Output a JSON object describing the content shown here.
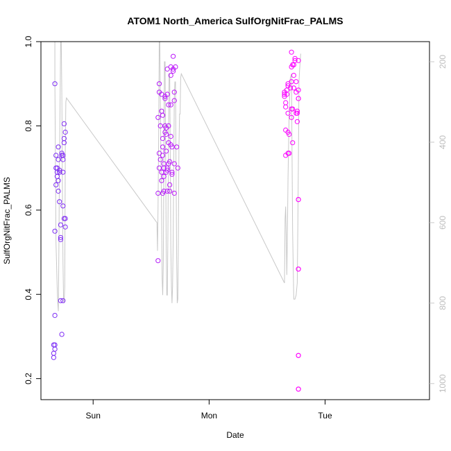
{
  "chart_data": {
    "type": "scatter",
    "title": "ATOM1 North_America SulfOrgNitFrac_PALMS",
    "xlabel": "Date",
    "ylabel": "SulfOrgNitFrac_PALMS",
    "x_unit": "days",
    "x_ticks": [
      {
        "label": "Sun",
        "value": 0
      },
      {
        "label": "Mon",
        "value": 1
      },
      {
        "label": "Tue",
        "value": 2
      }
    ],
    "xlim": [
      -0.45,
      2.9
    ],
    "ylim": [
      0.15,
      1.0
    ],
    "y_ticks": [
      0.2,
      0.4,
      0.6,
      0.8,
      1.0
    ],
    "secondary_axis": {
      "label": "",
      "ylim": [
        1040,
        150
      ],
      "ticks": [
        200,
        400,
        600,
        800,
        1000
      ],
      "color": "#c8c8c8"
    },
    "series": [
      {
        "label": "",
        "kind": "points",
        "color_start": "#7b2cf5",
        "color_end": "#ff00ff",
        "points": [
          [
            -0.33,
            0.9
          ],
          [
            -0.33,
            0.55
          ],
          [
            -0.33,
            0.35
          ],
          [
            -0.34,
            0.28
          ],
          [
            -0.34,
            0.26
          ],
          [
            -0.34,
            0.25
          ],
          [
            -0.33,
            0.28
          ],
          [
            -0.33,
            0.27
          ],
          [
            -0.32,
            0.73
          ],
          [
            -0.32,
            0.7
          ],
          [
            -0.31,
            0.69
          ],
          [
            -0.32,
            0.66
          ],
          [
            -0.31,
            0.68
          ],
          [
            -0.31,
            0.7
          ],
          [
            -0.3,
            0.75
          ],
          [
            -0.3,
            0.72
          ],
          [
            -0.3,
            0.67
          ],
          [
            -0.3,
            0.645
          ],
          [
            -0.29,
            0.62
          ],
          [
            -0.29,
            0.695
          ],
          [
            -0.29,
            0.69
          ],
          [
            -0.28,
            0.565
          ],
          [
            -0.28,
            0.535
          ],
          [
            -0.28,
            0.53
          ],
          [
            -0.28,
            0.385
          ],
          [
            -0.27,
            0.305
          ],
          [
            -0.27,
            0.735
          ],
          [
            -0.27,
            0.73
          ],
          [
            -0.26,
            0.73
          ],
          [
            -0.26,
            0.72
          ],
          [
            -0.26,
            0.69
          ],
          [
            -0.26,
            0.61
          ],
          [
            -0.25,
            0.58
          ],
          [
            -0.26,
            0.385
          ],
          [
            -0.25,
            0.805
          ],
          [
            -0.24,
            0.785
          ],
          [
            -0.25,
            0.77
          ],
          [
            -0.25,
            0.76
          ],
          [
            -0.24,
            0.58
          ],
          [
            -0.24,
            0.56
          ],
          [
            0.56,
            0.48
          ],
          [
            0.56,
            0.64
          ],
          [
            0.56,
            0.82
          ],
          [
            0.57,
            0.9
          ],
          [
            0.57,
            0.88
          ],
          [
            0.57,
            0.7
          ],
          [
            0.57,
            0.735
          ],
          [
            0.58,
            0.8
          ],
          [
            0.58,
            0.72
          ],
          [
            0.59,
            0.67
          ],
          [
            0.59,
            0.69
          ],
          [
            0.59,
            0.835
          ],
          [
            0.59,
            0.875
          ],
          [
            0.6,
            0.825
          ],
          [
            0.6,
            0.77
          ],
          [
            0.6,
            0.75
          ],
          [
            0.6,
            0.73
          ],
          [
            0.6,
            0.64
          ],
          [
            0.61,
            0.645
          ],
          [
            0.61,
            0.68
          ],
          [
            0.61,
            0.7
          ],
          [
            0.61,
            0.71
          ],
          [
            0.62,
            0.865
          ],
          [
            0.62,
            0.87
          ],
          [
            0.62,
            0.785
          ],
          [
            0.62,
            0.8
          ],
          [
            0.63,
            0.795
          ],
          [
            0.63,
            0.78
          ],
          [
            0.63,
            0.74
          ],
          [
            0.63,
            0.69
          ],
          [
            0.64,
            0.695
          ],
          [
            0.64,
            0.7
          ],
          [
            0.64,
            0.645
          ],
          [
            0.64,
            0.935
          ],
          [
            0.64,
            0.875
          ],
          [
            0.65,
            0.85
          ],
          [
            0.65,
            0.8
          ],
          [
            0.65,
            0.76
          ],
          [
            0.65,
            0.71
          ],
          [
            0.66,
            0.715
          ],
          [
            0.66,
            0.66
          ],
          [
            0.66,
            0.645
          ],
          [
            0.67,
            0.94
          ],
          [
            0.67,
            0.92
          ],
          [
            0.67,
            0.85
          ],
          [
            0.67,
            0.775
          ],
          [
            0.67,
            0.755
          ],
          [
            0.68,
            0.75
          ],
          [
            0.68,
            0.685
          ],
          [
            0.68,
            0.69
          ],
          [
            0.69,
            0.93
          ],
          [
            0.69,
            0.935
          ],
          [
            0.69,
            0.965
          ],
          [
            0.7,
            0.88
          ],
          [
            0.7,
            0.86
          ],
          [
            0.7,
            0.71
          ],
          [
            0.7,
            0.64
          ],
          [
            0.71,
            0.94
          ],
          [
            0.72,
            0.75
          ],
          [
            0.73,
            0.7
          ],
          [
            1.65,
            0.88
          ],
          [
            1.65,
            0.875
          ],
          [
            1.65,
            0.87
          ],
          [
            1.66,
            0.845
          ],
          [
            1.66,
            0.855
          ],
          [
            1.66,
            0.79
          ],
          [
            1.66,
            0.73
          ],
          [
            1.67,
            0.885
          ],
          [
            1.67,
            0.875
          ],
          [
            1.68,
            0.9
          ],
          [
            1.68,
            0.895
          ],
          [
            1.68,
            0.83
          ],
          [
            1.68,
            0.785
          ],
          [
            1.68,
            0.735
          ],
          [
            1.69,
            0.735
          ],
          [
            1.69,
            0.78
          ],
          [
            1.7,
            0.89
          ],
          [
            1.71,
            0.94
          ],
          [
            1.71,
            0.975
          ],
          [
            1.71,
            0.905
          ],
          [
            1.71,
            0.84
          ],
          [
            1.71,
            0.82
          ],
          [
            1.72,
            0.84
          ],
          [
            1.72,
            0.76
          ],
          [
            1.72,
            0.945
          ],
          [
            1.73,
            0.945
          ],
          [
            1.73,
            0.92
          ],
          [
            1.73,
            0.89
          ],
          [
            1.74,
            0.96
          ],
          [
            1.74,
            0.955
          ],
          [
            1.75,
            0.905
          ],
          [
            1.75,
            0.88
          ],
          [
            1.75,
            0.83
          ],
          [
            1.76,
            0.83
          ],
          [
            1.76,
            0.835
          ],
          [
            1.76,
            0.81
          ],
          [
            1.77,
            0.955
          ],
          [
            1.77,
            0.885
          ],
          [
            1.77,
            0.865
          ],
          [
            1.77,
            0.625
          ],
          [
            1.77,
            0.625
          ],
          [
            1.77,
            0.46
          ],
          [
            1.77,
            0.46
          ],
          [
            1.77,
            0.255
          ],
          [
            1.77,
            0.255
          ],
          [
            1.77,
            0.175
          ],
          [
            1.77,
            0.175
          ],
          [
            1.77,
            0.865
          ]
        ]
      },
      {
        "label": "",
        "kind": "line",
        "axis": "secondary",
        "color": "#c8c8c8",
        "points": [
          [
            -0.33,
            150
          ],
          [
            -0.33,
            250
          ],
          [
            -0.325,
            450
          ],
          [
            -0.32,
            650
          ],
          [
            -0.31,
            760
          ],
          [
            -0.305,
            800
          ],
          [
            -0.3,
            820
          ],
          [
            -0.295,
            660
          ],
          [
            -0.29,
            450
          ],
          [
            -0.285,
            300
          ],
          [
            -0.28,
            150
          ],
          [
            -0.275,
            150
          ],
          [
            -0.27,
            280
          ],
          [
            -0.265,
            500
          ],
          [
            -0.26,
            700
          ],
          [
            -0.255,
            790
          ],
          [
            -0.25,
            800
          ],
          [
            -0.245,
            760
          ],
          [
            -0.24,
            420
          ],
          [
            -0.235,
            300
          ],
          [
            -0.23,
            290
          ],
          [
            0.55,
            600
          ],
          [
            0.555,
            670
          ],
          [
            0.56,
            560
          ],
          [
            0.565,
            380
          ],
          [
            0.57,
            150
          ],
          [
            0.575,
            150
          ],
          [
            0.58,
            320
          ],
          [
            0.59,
            580
          ],
          [
            0.595,
            740
          ],
          [
            0.6,
            780
          ],
          [
            0.605,
            700
          ],
          [
            0.61,
            420
          ],
          [
            0.615,
            200
          ],
          [
            0.62,
            200
          ],
          [
            0.625,
            420
          ],
          [
            0.63,
            650
          ],
          [
            0.635,
            780
          ],
          [
            0.64,
            780
          ],
          [
            0.645,
            620
          ],
          [
            0.65,
            400
          ],
          [
            0.655,
            230
          ],
          [
            0.66,
            230
          ],
          [
            0.665,
            420
          ],
          [
            0.67,
            660
          ],
          [
            0.675,
            760
          ],
          [
            0.68,
            800
          ],
          [
            0.685,
            760
          ],
          [
            0.69,
            640
          ],
          [
            0.695,
            470
          ],
          [
            0.7,
            290
          ],
          [
            0.705,
            250
          ],
          [
            0.71,
            250
          ],
          [
            0.715,
            460
          ],
          [
            0.72,
            690
          ],
          [
            0.725,
            800
          ],
          [
            0.73,
            790
          ],
          [
            0.735,
            640
          ],
          [
            0.74,
            410
          ],
          [
            0.745,
            330
          ],
          [
            0.75,
            330
          ],
          [
            0.755,
            240
          ],
          [
            0.76,
            230
          ],
          [
            1.65,
            750
          ],
          [
            1.655,
            590
          ],
          [
            1.66,
            560
          ],
          [
            1.665,
            640
          ],
          [
            1.67,
            730
          ],
          [
            1.675,
            630
          ],
          [
            1.68,
            490
          ],
          [
            1.69,
            330
          ],
          [
            1.7,
            240
          ],
          [
            1.71,
            230
          ],
          [
            1.715,
            430
          ],
          [
            1.72,
            620
          ],
          [
            1.73,
            790
          ],
          [
            1.74,
            790
          ],
          [
            1.75,
            780
          ],
          [
            1.76,
            750
          ],
          [
            1.765,
            600
          ],
          [
            1.77,
            440
          ],
          [
            1.775,
            250
          ],
          [
            1.78,
            220
          ],
          [
            1.79,
            180
          ]
        ]
      }
    ],
    "grid": false,
    "legend": "none"
  }
}
